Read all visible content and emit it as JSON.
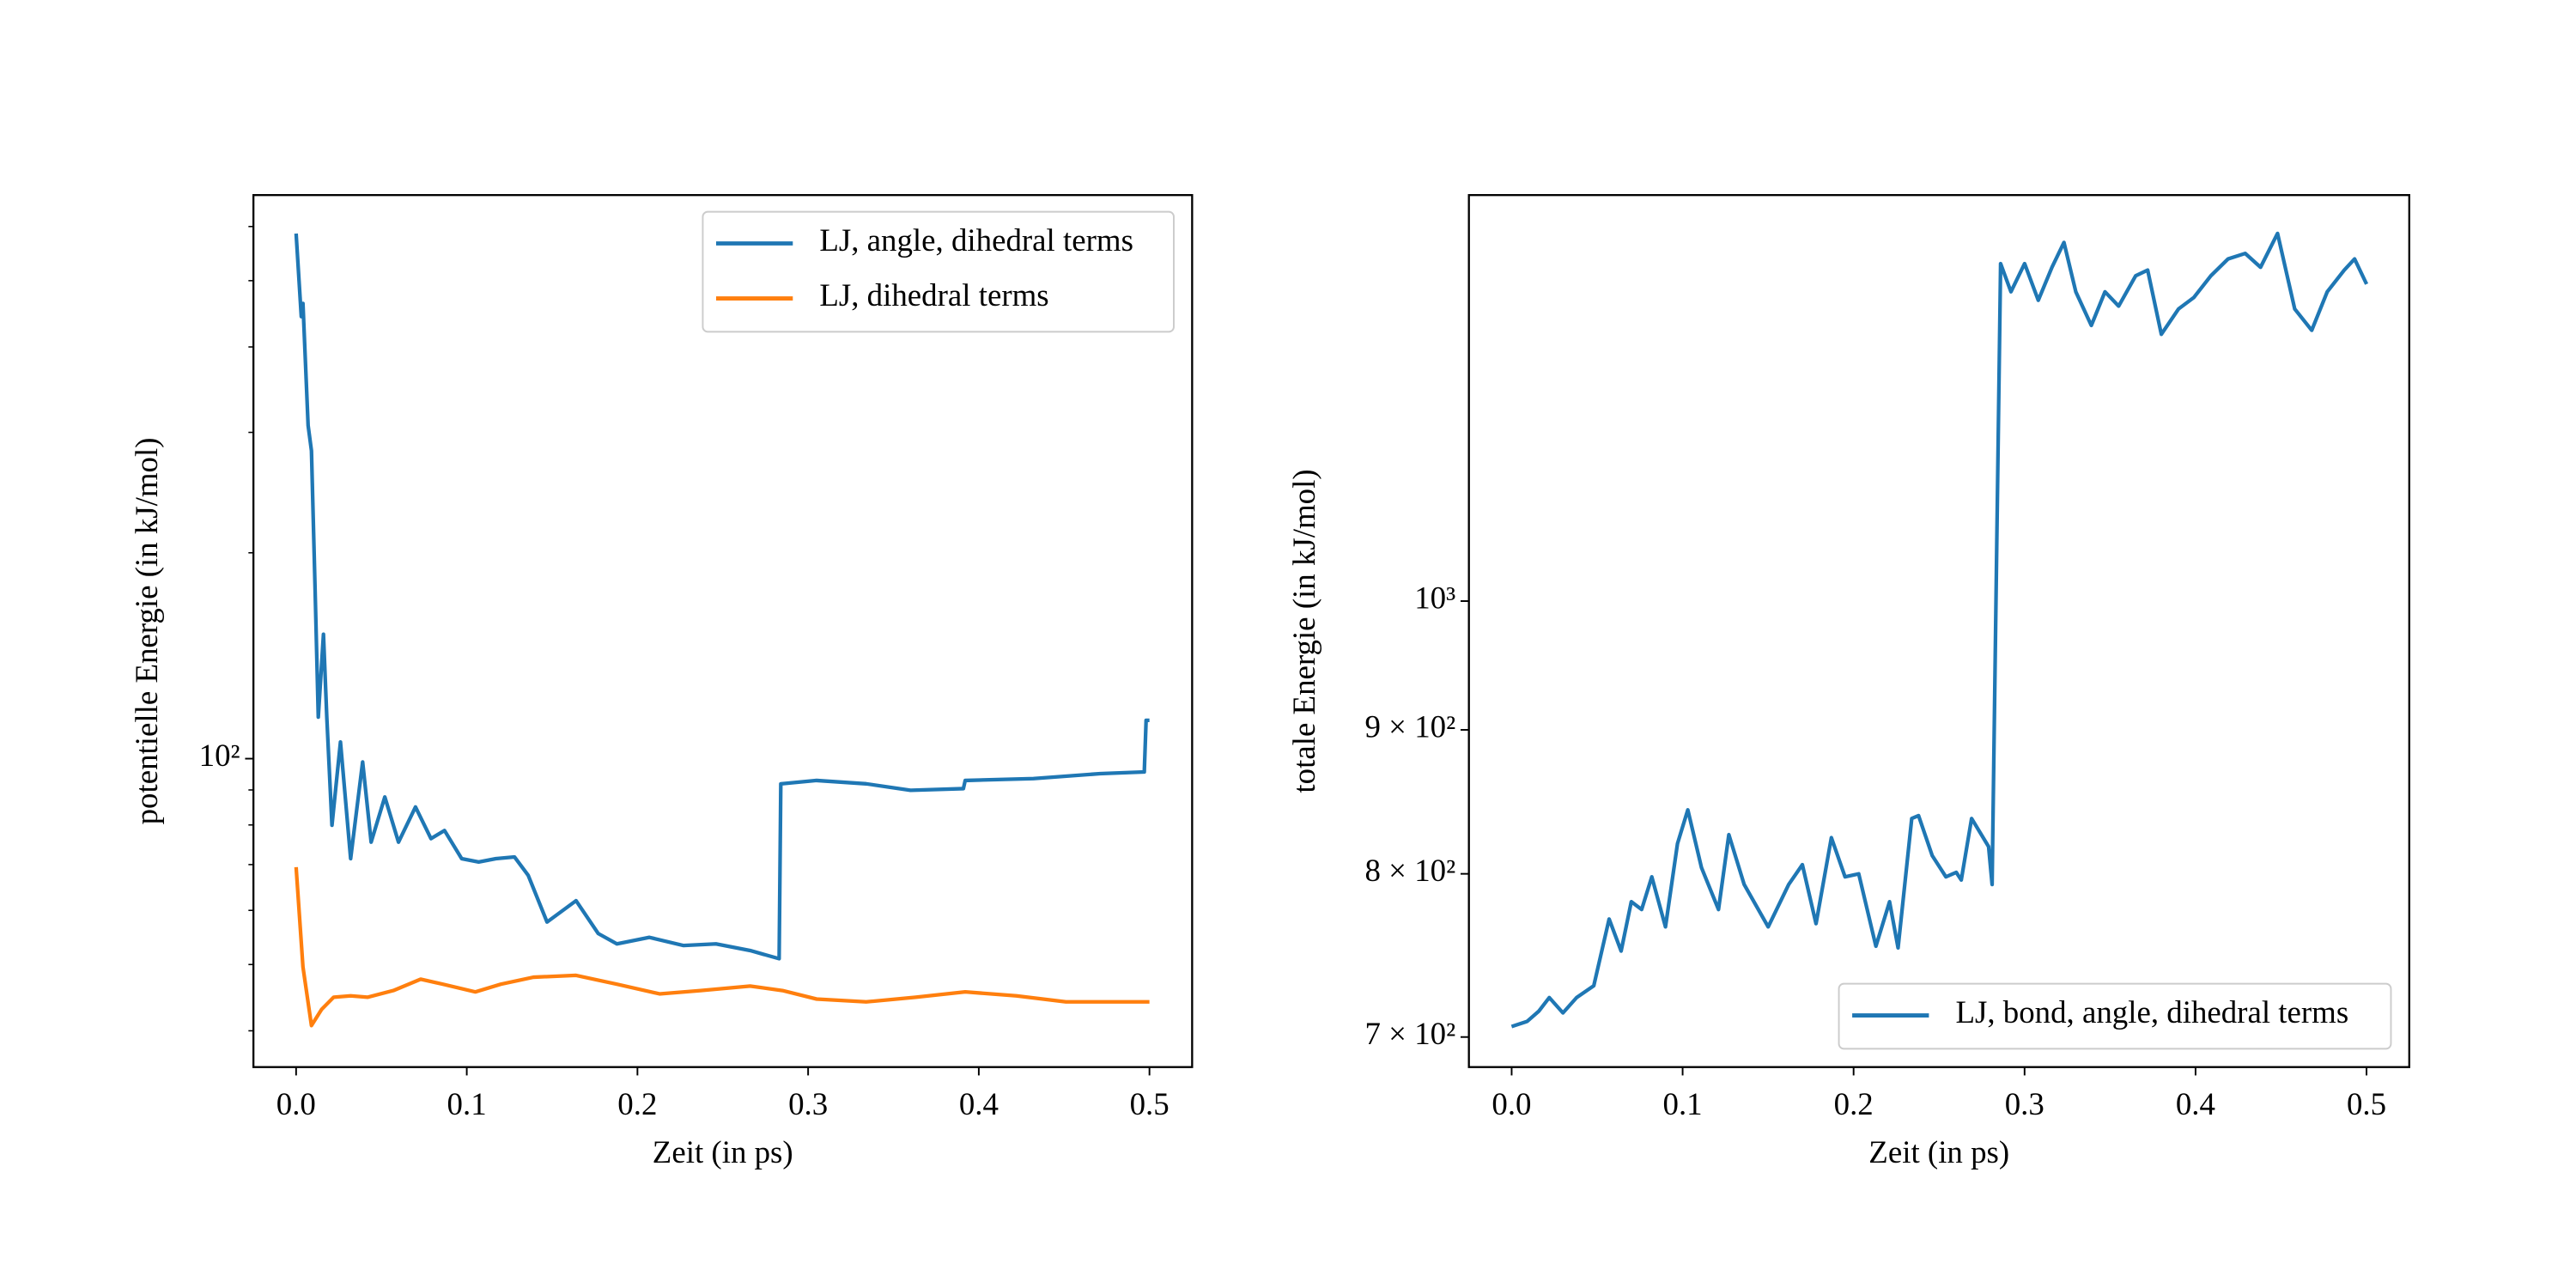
{
  "chart_data": [
    {
      "type": "line",
      "yscale": "log",
      "xlabel": "Zeit (in ps)",
      "ylabel": "potentielle Energie (in kJ/mol)",
      "xlim": [
        -0.025,
        0.525
      ],
      "xticks": [
        {
          "value": 0,
          "label": "0.0"
        },
        0.1,
        0.2,
        0.3,
        0.4,
        0.5
      ],
      "ylim": [
        35.4,
        667
      ],
      "yticks": [
        {
          "value": 100,
          "label": "10²"
        }
      ],
      "yminorticks": [
        40,
        50,
        60,
        70,
        80,
        90,
        200,
        300,
        400,
        500,
        600
      ],
      "legend": "upper right",
      "series": [
        {
          "name": "LJ, angle, dihedral terms",
          "color": "#1f77b4",
          "x": [
            0,
            0.003,
            0.004,
            0.007,
            0.009,
            0.011,
            0.013,
            0.016,
            0.018,
            0.021,
            0.026,
            0.032,
            0.039,
            0.044,
            0.052,
            0.06,
            0.07,
            0.079,
            0.087,
            0.097,
            0.107,
            0.117,
            0.128,
            0.136,
            0.147,
            0.164,
            0.177,
            0.188,
            0.207,
            0.227,
            0.246,
            0.266,
            0.283,
            0.284,
            0.305,
            0.334,
            0.36,
            0.391,
            0.392,
            0.432,
            0.471,
            0.497,
            0.498,
            0.5
          ],
          "values": [
            586,
            443,
            463,
            307,
            282,
            180,
            115,
            152,
            115,
            79.9,
            105.8,
            71.4,
            98.9,
            75.5,
            87.9,
            75.5,
            85,
            76.4,
            78.5,
            71.4,
            70.6,
            71.4,
            71.8,
            67.5,
            57.7,
            62.0,
            55.5,
            53.6,
            54.8,
            53.3,
            53.6,
            52.4,
            51.0,
            91.9,
            92.9,
            91.9,
            89.9,
            90.4,
            92.9,
            93.5,
            95.1,
            95.6,
            113.8,
            113.8
          ]
        },
        {
          "name": "LJ, dihedral terms",
          "color": "#ff7f0e",
          "x": [
            0,
            0.004,
            0.009,
            0.015,
            0.022,
            0.032,
            0.042,
            0.057,
            0.073,
            0.086,
            0.105,
            0.12,
            0.139,
            0.164,
            0.188,
            0.213,
            0.237,
            0.266,
            0.285,
            0.305,
            0.334,
            0.363,
            0.392,
            0.422,
            0.451,
            0.471,
            0.5
          ],
          "values": [
            69.4,
            49.6,
            40.7,
            43.0,
            44.8,
            45.0,
            44.8,
            45.8,
            47.6,
            46.8,
            45.6,
            46.8,
            47.9,
            48.2,
            46.8,
            45.3,
            45.8,
            46.5,
            45.8,
            44.5,
            44.1,
            44.8,
            45.6,
            45.0,
            44.1,
            44.1,
            44.1
          ]
        }
      ]
    },
    {
      "type": "line",
      "yscale": "log",
      "xlabel": "Zeit (in ps)",
      "ylabel": "totale Energie (in kJ/mol)",
      "xlim": [
        -0.025,
        0.525
      ],
      "xticks": [
        {
          "value": 0,
          "label": "0.0"
        },
        0.1,
        0.2,
        0.3,
        0.4,
        0.5
      ],
      "ylim": [
        683,
        1394
      ],
      "yticks": [
        {
          "value": 700,
          "label": "7 × 10²"
        },
        {
          "value": 800,
          "label": "8 × 10²"
        },
        {
          "value": 900,
          "label": "9 × 10²"
        },
        {
          "value": 1000,
          "label": "10³"
        }
      ],
      "yminorticks": [],
      "legend": "lower right",
      "series": [
        {
          "name": "LJ, bond, angle, dihedral terms",
          "color": "#1f77b4",
          "x": [
            0,
            0.009,
            0.016,
            0.022,
            0.03,
            0.038,
            0.048,
            0.057,
            0.064,
            0.07,
            0.076,
            0.082,
            0.09,
            0.097,
            0.103,
            0.111,
            0.121,
            0.127,
            0.136,
            0.15,
            0.162,
            0.17,
            0.178,
            0.187,
            0.195,
            0.203,
            0.213,
            0.221,
            0.226,
            0.234,
            0.238,
            0.246,
            0.254,
            0.26,
            0.263,
            0.269,
            0.279,
            0.281,
            0.286,
            0.292,
            0.3,
            0.308,
            0.316,
            0.323,
            0.33,
            0.339,
            0.347,
            0.355,
            0.365,
            0.372,
            0.38,
            0.39,
            0.399,
            0.409,
            0.419,
            0.429,
            0.438,
            0.448,
            0.458,
            0.468,
            0.477,
            0.487,
            0.493,
            0.5
          ],
          "values": [
            706,
            709,
            715,
            723,
            714,
            723,
            730,
            771,
            751,
            782,
            777,
            798,
            766,
            820,
            843,
            804,
            777,
            826,
            793,
            766,
            793,
            806,
            768,
            824,
            798,
            800,
            754,
            782,
            753,
            837,
            839,
            812,
            798,
            801,
            796,
            837,
            818,
            793,
            1318,
            1288,
            1318,
            1279,
            1314,
            1341,
            1288,
            1253,
            1288,
            1273,
            1305,
            1311,
            1244,
            1270,
            1282,
            1305,
            1323,
            1329,
            1314,
            1351,
            1270,
            1248,
            1288,
            1311,
            1323,
            1296
          ]
        }
      ]
    }
  ]
}
